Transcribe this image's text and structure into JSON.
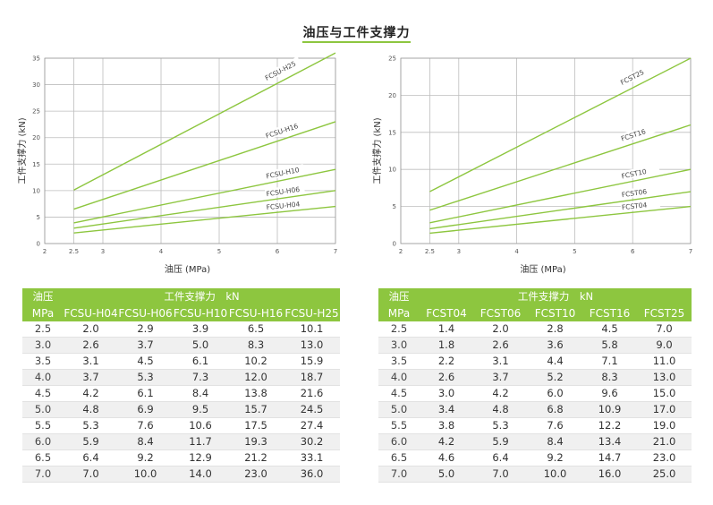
{
  "title": "油压与工件支撑力",
  "colors": {
    "line": "#8dc63f",
    "header": "#8dc63f",
    "grid": "#bdbdbd"
  },
  "chart_data": [
    {
      "type": "line",
      "xlabel": "油压 (MPa)",
      "ylabel": "工件支撑力 (kN)",
      "xlim": [
        2,
        7
      ],
      "ylim": [
        0,
        35
      ],
      "xticks": [
        2,
        2.5,
        3,
        4,
        5,
        6,
        7
      ],
      "xtick_labels": [
        "2",
        "2.5",
        "3",
        "4",
        "5",
        "6",
        "7"
      ],
      "yticks": [
        0,
        5,
        10,
        15,
        20,
        25,
        30,
        35
      ],
      "series": [
        {
          "name": "FCSU-H25",
          "x": [
            2.5,
            7.0
          ],
          "y": [
            10.1,
            36.0
          ]
        },
        {
          "name": "FCSU-H16",
          "x": [
            2.5,
            7.0
          ],
          "y": [
            6.5,
            23.0
          ]
        },
        {
          "name": "FCSU-H10",
          "x": [
            2.5,
            7.0
          ],
          "y": [
            3.9,
            14.0
          ]
        },
        {
          "name": "FCSU-H06",
          "x": [
            2.5,
            7.0
          ],
          "y": [
            2.9,
            10.0
          ]
        },
        {
          "name": "FCSU-H04",
          "x": [
            2.5,
            7.0
          ],
          "y": [
            2.0,
            7.0
          ]
        }
      ]
    },
    {
      "type": "line",
      "xlabel": "油压 (MPa)",
      "ylabel": "工件支撑力 (kN)",
      "xlim": [
        2,
        7
      ],
      "ylim": [
        0,
        25
      ],
      "xticks": [
        2,
        2.5,
        3,
        4,
        5,
        6,
        7
      ],
      "xtick_labels": [
        "2",
        "2.5",
        "3",
        "4",
        "5",
        "6",
        "7"
      ],
      "yticks": [
        0,
        5,
        10,
        15,
        20,
        25
      ],
      "series": [
        {
          "name": "FCST25",
          "x": [
            2.5,
            7.0
          ],
          "y": [
            7.0,
            25.0
          ]
        },
        {
          "name": "FCST16",
          "x": [
            2.5,
            7.0
          ],
          "y": [
            4.5,
            16.0
          ]
        },
        {
          "name": "FCST10",
          "x": [
            2.5,
            7.0
          ],
          "y": [
            2.8,
            10.0
          ]
        },
        {
          "name": "FCST06",
          "x": [
            2.5,
            7.0
          ],
          "y": [
            2.0,
            7.0
          ]
        },
        {
          "name": "FCST04",
          "x": [
            2.5,
            7.0
          ],
          "y": [
            1.4,
            5.0
          ]
        }
      ]
    }
  ],
  "tables": [
    {
      "corner_top": "油压",
      "corner_bottom": "MPa",
      "group_label": "工件支撑力　kN",
      "columns": [
        "FCSU-H04",
        "FCSU-H06",
        "FCSU-H10",
        "FCSU-H16",
        "FCSU-H25"
      ],
      "rows": [
        [
          "2.5",
          "2.0",
          "2.9",
          "3.9",
          "6.5",
          "10.1"
        ],
        [
          "3.0",
          "2.6",
          "3.7",
          "5.0",
          "8.3",
          "13.0"
        ],
        [
          "3.5",
          "3.1",
          "4.5",
          "6.1",
          "10.2",
          "15.9"
        ],
        [
          "4.0",
          "3.7",
          "5.3",
          "7.3",
          "12.0",
          "18.7"
        ],
        [
          "4.5",
          "4.2",
          "6.1",
          "8.4",
          "13.8",
          "21.6"
        ],
        [
          "5.0",
          "4.8",
          "6.9",
          "9.5",
          "15.7",
          "24.5"
        ],
        [
          "5.5",
          "5.3",
          "7.6",
          "10.6",
          "17.5",
          "27.4"
        ],
        [
          "6.0",
          "5.9",
          "8.4",
          "11.7",
          "19.3",
          "30.2"
        ],
        [
          "6.5",
          "6.4",
          "9.2",
          "12.9",
          "21.2",
          "33.1"
        ],
        [
          "7.0",
          "7.0",
          "10.0",
          "14.0",
          "23.0",
          "36.0"
        ]
      ]
    },
    {
      "corner_top": "油压",
      "corner_bottom": "MPa",
      "group_label": "工件支撑力　kN",
      "columns": [
        "FCST04",
        "FCST06",
        "FCST10",
        "FCST16",
        "FCST25"
      ],
      "rows": [
        [
          "2.5",
          "1.4",
          "2.0",
          "2.8",
          "4.5",
          "7.0"
        ],
        [
          "3.0",
          "1.8",
          "2.6",
          "3.6",
          "5.8",
          "9.0"
        ],
        [
          "3.5",
          "2.2",
          "3.1",
          "4.4",
          "7.1",
          "11.0"
        ],
        [
          "4.0",
          "2.6",
          "3.7",
          "5.2",
          "8.3",
          "13.0"
        ],
        [
          "4.5",
          "3.0",
          "4.2",
          "6.0",
          "9.6",
          "15.0"
        ],
        [
          "5.0",
          "3.4",
          "4.8",
          "6.8",
          "10.9",
          "17.0"
        ],
        [
          "5.5",
          "3.8",
          "5.3",
          "7.6",
          "12.2",
          "19.0"
        ],
        [
          "6.0",
          "4.2",
          "5.9",
          "8.4",
          "13.4",
          "21.0"
        ],
        [
          "6.5",
          "4.6",
          "6.4",
          "9.2",
          "14.7",
          "23.0"
        ],
        [
          "7.0",
          "5.0",
          "7.0",
          "10.0",
          "16.0",
          "25.0"
        ]
      ]
    }
  ]
}
